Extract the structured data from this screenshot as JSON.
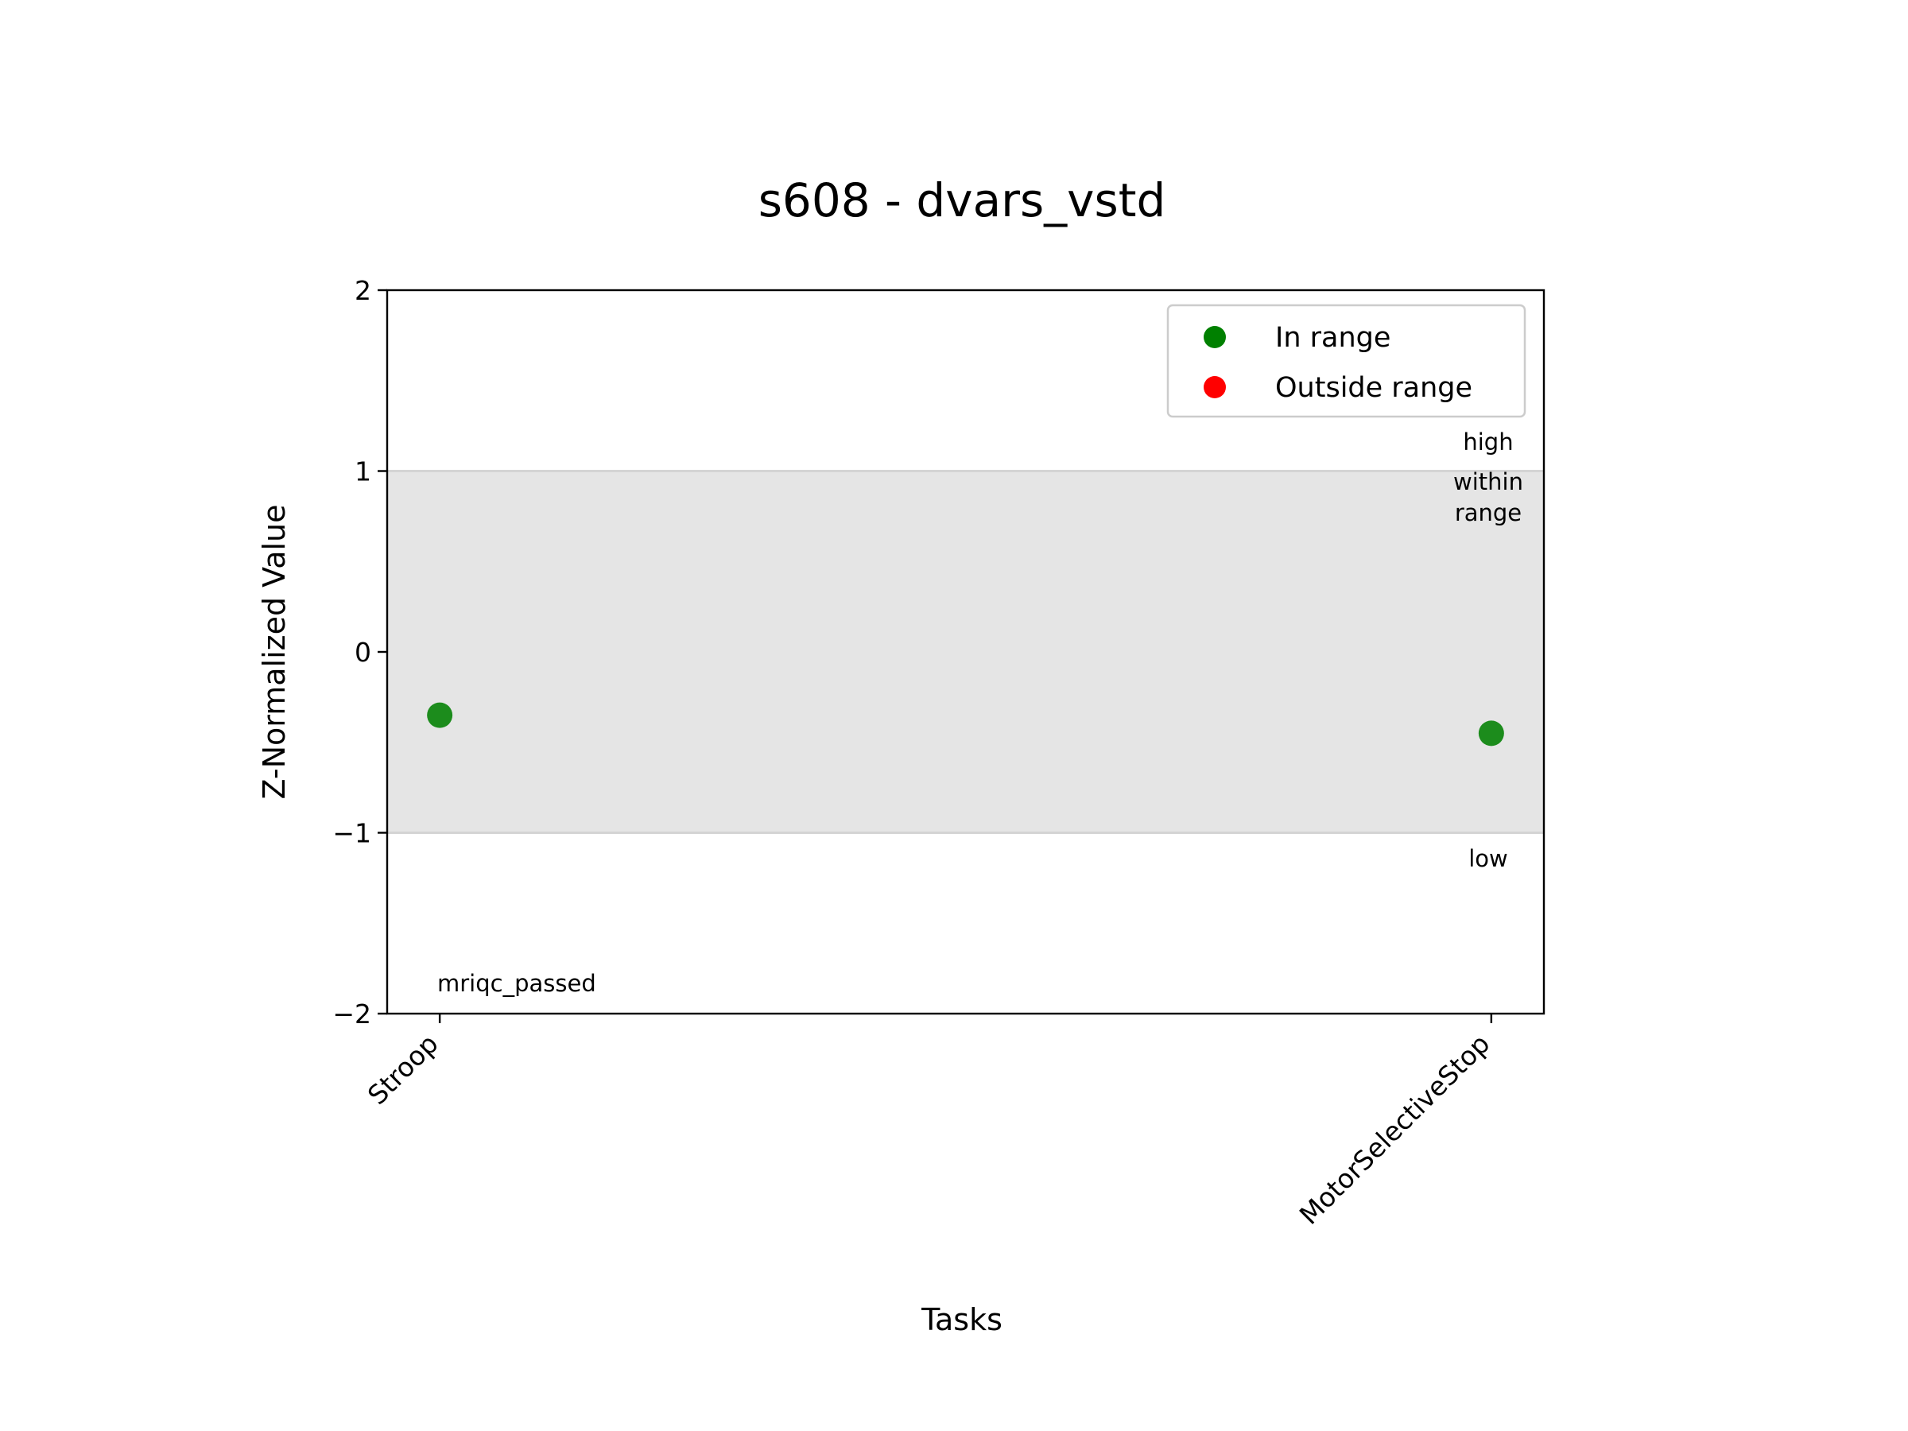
{
  "chart_data": {
    "type": "scatter",
    "title": "s608 - dvars_vstd",
    "xlabel": "Tasks",
    "ylabel": "Z-Normalized Value",
    "categories": [
      "Stroop",
      "MotorSelectiveStop"
    ],
    "ylim": [
      -2,
      2
    ],
    "yticks": [
      2,
      1,
      0,
      -1,
      -2
    ],
    "ytick_labels": [
      "2",
      "1",
      "0",
      "−1",
      "−2"
    ],
    "points": [
      {
        "category": "Stroop",
        "value": -0.35,
        "status": "In range"
      },
      {
        "category": "MotorSelectiveStop",
        "value": -0.45,
        "status": "In range"
      }
    ],
    "shaded_band": {
      "from": -1,
      "to": 1,
      "color": "#e5e5e5"
    },
    "band_labels": {
      "high": "high",
      "within_line1": "within",
      "within_line2": "range",
      "low": "low"
    },
    "note": "mriqc_passed",
    "legend": {
      "placement": "top-right",
      "entries": [
        {
          "label": "In range",
          "color": "#008000"
        },
        {
          "label": "Outside range",
          "color": "#ff0000"
        }
      ]
    },
    "grid": false
  }
}
